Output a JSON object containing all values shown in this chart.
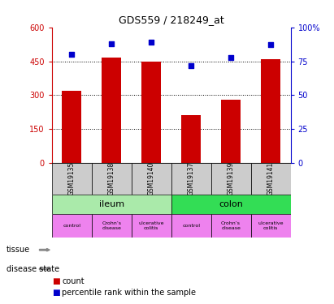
{
  "title": "GDS559 / 218249_at",
  "samples": [
    "GSM19135",
    "GSM19138",
    "GSM19140",
    "GSM19137",
    "GSM19139",
    "GSM19141"
  ],
  "bar_values": [
    320,
    465,
    450,
    210,
    280,
    460
  ],
  "percentile_values": [
    80,
    88,
    89,
    72,
    78,
    87
  ],
  "bar_color": "#cc0000",
  "percentile_color": "#0000cc",
  "ylim_left": [
    0,
    600
  ],
  "ylim_right": [
    0,
    100
  ],
  "yticks_left": [
    0,
    150,
    300,
    450,
    600
  ],
  "yticks_right": [
    0,
    25,
    50,
    75,
    100
  ],
  "ytick_labels_left": [
    "0",
    "150",
    "300",
    "450",
    "600"
  ],
  "ytick_labels_right": [
    "0",
    "25",
    "50",
    "75",
    "100%"
  ],
  "tissue_ileum_label": "ileum",
  "tissue_colon_label": "colon",
  "tissue_ileum_color": "#aaeaaa",
  "tissue_colon_color": "#33dd55",
  "disease_states": [
    "control",
    "Crohn’s\ndisease",
    "ulcerative\ncolitis",
    "control",
    "Crohn’s\ndisease",
    "ulcerative\ncolitis"
  ],
  "disease_color": "#ee82ee",
  "sample_bg_color": "#cccccc",
  "left_tick_color": "#cc0000",
  "right_tick_color": "#0000cc",
  "grid_color": "#000000",
  "legend_count_label": "count",
  "legend_percentile_label": "percentile rank within the sample"
}
